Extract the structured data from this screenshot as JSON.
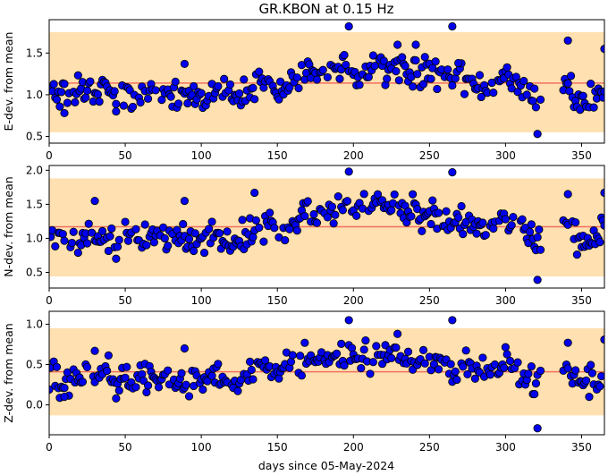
{
  "figure": {
    "title": "GR.KBON at 0.15 Hz",
    "xlabel": "days since 05-May-2024"
  },
  "colors": {
    "band": "#ffe0b0",
    "mean_line": "#f07060",
    "marker_fill": "#0000ee",
    "marker_edge": "#000000"
  },
  "chart_data": [
    {
      "type": "scatter",
      "title": "",
      "xlabel": "",
      "ylabel": "E-dev. from mean",
      "xlim": [
        0,
        365
      ],
      "ylim": [
        0.42,
        1.9
      ],
      "xticks": [
        0,
        50,
        100,
        150,
        200,
        250,
        300,
        350
      ],
      "yticks": [
        0.5,
        1.0,
        1.5
      ],
      "ytick_labels": [
        "0.5",
        "1.0",
        "1.5"
      ],
      "mean": 1.14,
      "band": [
        0.55,
        1.75
      ],
      "series": [
        {
          "x": [
            0,
            5,
            10,
            15,
            20,
            25,
            30,
            35,
            40,
            45,
            50,
            55,
            60,
            65,
            70,
            75,
            80,
            85,
            90,
            95,
            100,
            105,
            110,
            115,
            120,
            125,
            130,
            135,
            140,
            145,
            150,
            155,
            160,
            165,
            170,
            175,
            180,
            185,
            190,
            195,
            200,
            205,
            210,
            215,
            220,
            225,
            230,
            235,
            240,
            245,
            250,
            255,
            260,
            265,
            270,
            275,
            280,
            285,
            290,
            295,
            300,
            305,
            310,
            315,
            320,
            340,
            345,
            350,
            355,
            360,
            365
          ],
          "y": [
            1.1,
            1.0,
            0.95,
            1.05,
            1.0,
            1.1,
            1.05,
            1.15,
            1.1,
            0.9,
            1.0,
            0.95,
            1.0,
            1.05,
            1.0,
            1.05,
            1.0,
            1.0,
            0.95,
            1.0,
            0.9,
            0.95,
            1.0,
            1.0,
            0.95,
            1.0,
            1.1,
            1.1,
            1.15,
            1.1,
            1.05,
            1.1,
            1.2,
            1.2,
            1.25,
            1.25,
            1.2,
            1.3,
            1.3,
            1.3,
            1.25,
            1.3,
            1.3,
            1.35,
            1.3,
            1.35,
            1.35,
            1.3,
            1.3,
            1.25,
            1.3,
            1.25,
            1.25,
            1.2,
            1.2,
            1.15,
            1.15,
            1.15,
            1.15,
            1.15,
            1.25,
            1.2,
            1.05,
            1.0,
            0.95,
            1.1,
            0.95,
            0.9,
            1.0,
            1.05,
            1.1
          ]
        }
      ],
      "outliers": {
        "x": [
          197,
          265,
          89,
          229,
          241,
          269,
          321,
          341,
          365,
          44,
          10
        ],
        "y": [
          1.82,
          1.82,
          1.37,
          1.6,
          1.6,
          1.38,
          0.53,
          1.65,
          1.55,
          0.8,
          0.78
        ]
      }
    },
    {
      "type": "scatter",
      "title": "",
      "xlabel": "",
      "ylabel": "N-dev. from mean",
      "xlim": [
        0,
        365
      ],
      "ylim": [
        0.27,
        2.07
      ],
      "xticks": [
        0,
        50,
        100,
        150,
        200,
        250,
        300,
        350
      ],
      "yticks": [
        0.5,
        1.0,
        1.5,
        2.0
      ],
      "ytick_labels": [
        "0.5",
        "1.0",
        "1.5",
        "2.0"
      ],
      "mean": 1.17,
      "band": [
        0.44,
        1.88
      ],
      "series": [
        {
          "x": [
            0,
            5,
            10,
            15,
            20,
            25,
            30,
            35,
            40,
            45,
            50,
            55,
            60,
            65,
            70,
            75,
            80,
            85,
            90,
            95,
            100,
            105,
            110,
            115,
            120,
            125,
            130,
            135,
            140,
            145,
            150,
            155,
            160,
            165,
            170,
            175,
            180,
            185,
            190,
            195,
            200,
            205,
            210,
            215,
            220,
            225,
            230,
            235,
            240,
            245,
            250,
            255,
            260,
            265,
            270,
            275,
            280,
            285,
            290,
            295,
            300,
            305,
            310,
            315,
            320,
            340,
            345,
            350,
            355,
            360,
            365
          ],
          "y": [
            1.0,
            0.95,
            1.0,
            1.05,
            0.9,
            1.0,
            1.05,
            1.05,
            1.0,
            0.85,
            1.05,
            1.0,
            1.05,
            1.0,
            1.05,
            1.05,
            1.0,
            1.0,
            0.95,
            1.0,
            0.95,
            1.0,
            1.0,
            1.0,
            0.9,
            1.0,
            1.1,
            1.15,
            1.2,
            1.2,
            1.1,
            1.2,
            1.3,
            1.3,
            1.35,
            1.35,
            1.3,
            1.4,
            1.45,
            1.45,
            1.4,
            1.45,
            1.45,
            1.5,
            1.45,
            1.5,
            1.5,
            1.45,
            1.4,
            1.35,
            1.4,
            1.35,
            1.3,
            1.3,
            1.25,
            1.25,
            1.2,
            1.2,
            1.2,
            1.25,
            1.35,
            1.3,
            1.1,
            1.0,
            0.95,
            1.2,
            1.05,
            0.9,
            0.95,
            1.05,
            1.2
          ]
        }
      ],
      "outliers": {
        "x": [
          197,
          265,
          30,
          89,
          135,
          321,
          341,
          365,
          44
        ],
        "y": [
          1.98,
          1.97,
          1.55,
          1.55,
          1.67,
          0.39,
          1.65,
          1.67,
          0.7
        ]
      }
    },
    {
      "type": "scatter",
      "title": "",
      "xlabel": "",
      "ylabel": "Z-dev. from mean",
      "xlim": [
        0,
        365
      ],
      "ylim": [
        -0.37,
        1.16
      ],
      "xticks": [
        0,
        50,
        100,
        150,
        200,
        250,
        300,
        350
      ],
      "yticks": [
        0.0,
        0.5,
        1.0
      ],
      "ytick_labels": [
        "0.0",
        "0.5",
        "1.0"
      ],
      "mean": 0.41,
      "band": [
        -0.13,
        0.95
      ],
      "series": [
        {
          "x": [
            0,
            5,
            10,
            15,
            20,
            25,
            30,
            35,
            40,
            45,
            50,
            55,
            60,
            65,
            70,
            75,
            80,
            85,
            90,
            95,
            100,
            105,
            110,
            115,
            120,
            125,
            130,
            135,
            140,
            145,
            150,
            155,
            160,
            165,
            170,
            175,
            180,
            185,
            190,
            195,
            200,
            205,
            210,
            215,
            220,
            225,
            230,
            235,
            240,
            245,
            250,
            255,
            260,
            265,
            270,
            275,
            280,
            285,
            290,
            295,
            300,
            305,
            310,
            315,
            320,
            340,
            345,
            350,
            355,
            360,
            365
          ],
          "y": [
            0.35,
            0.3,
            0.3,
            0.35,
            0.3,
            0.4,
            0.4,
            0.4,
            0.35,
            0.25,
            0.35,
            0.3,
            0.35,
            0.35,
            0.35,
            0.35,
            0.3,
            0.35,
            0.3,
            0.35,
            0.3,
            0.3,
            0.35,
            0.35,
            0.3,
            0.35,
            0.4,
            0.45,
            0.5,
            0.45,
            0.4,
            0.45,
            0.5,
            0.5,
            0.55,
            0.55,
            0.5,
            0.6,
            0.6,
            0.6,
            0.55,
            0.6,
            0.6,
            0.65,
            0.6,
            0.65,
            0.65,
            0.6,
            0.55,
            0.5,
            0.55,
            0.5,
            0.5,
            0.45,
            0.45,
            0.45,
            0.4,
            0.4,
            0.4,
            0.45,
            0.55,
            0.5,
            0.35,
            0.3,
            0.25,
            0.45,
            0.3,
            0.2,
            0.25,
            0.3,
            0.45
          ]
        }
      ],
      "outliers": {
        "x": [
          197,
          265,
          30,
          89,
          229,
          321,
          341,
          365,
          10,
          44
        ],
        "y": [
          1.05,
          1.05,
          0.67,
          0.7,
          0.88,
          -0.29,
          0.77,
          0.81,
          0.1,
          0.08
        ]
      }
    }
  ]
}
